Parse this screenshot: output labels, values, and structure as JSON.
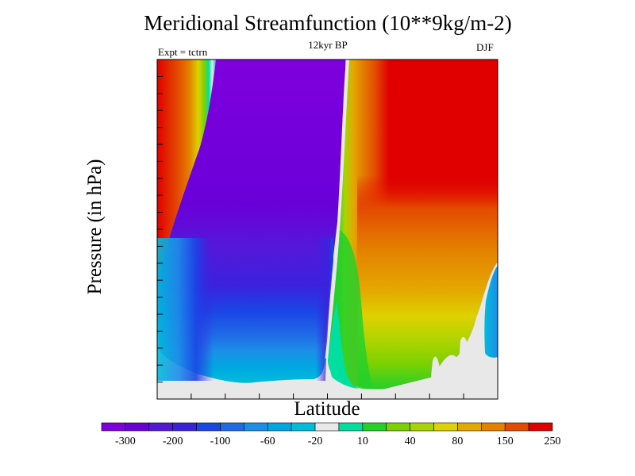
{
  "chart_data": {
    "type": "heatmap",
    "title": "Meridional Streamfunction (10**9kg/m-2)",
    "subtitle": "12kyr BP",
    "left_label": "Expt = tctrn",
    "right_label": "DJF",
    "xlabel": "Latitude",
    "ylabel": "Pressure (in hPa)",
    "colorbar": {
      "colors": [
        "#7e00dd",
        "#6a00d9",
        "#5418d9",
        "#3a22dd",
        "#1a46e6",
        "#1f6ae6",
        "#1c8ee8",
        "#00a7e0",
        "#00bcdb",
        "#e8e8e8",
        "#00dfa0",
        "#24d02a",
        "#7ed100",
        "#a8d400",
        "#ddd200",
        "#e4a800",
        "#e48200",
        "#e44a00",
        "#e00000"
      ],
      "tick_labels": [
        "-300",
        "-200",
        "-100",
        "-60",
        "-20",
        "10",
        "40",
        "80",
        "150",
        "250"
      ]
    }
  }
}
